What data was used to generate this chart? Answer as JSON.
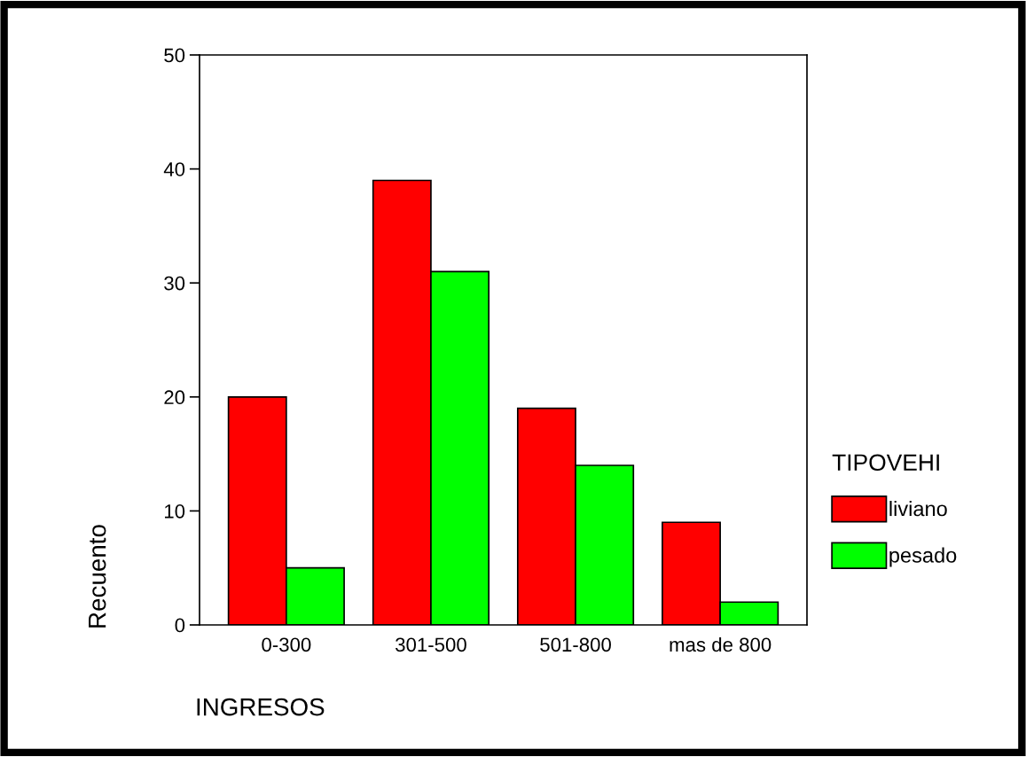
{
  "chart_data": {
    "type": "bar",
    "xlabel": "INGRESOS",
    "ylabel": "Recuento",
    "legend_title": "TIPOVEHI",
    "categories": [
      "0-300",
      "301-500",
      "501-800",
      "mas de 800"
    ],
    "series": [
      {
        "name": "liviano",
        "color": "#ff0000",
        "values": [
          20,
          39,
          19,
          9
        ]
      },
      {
        "name": "pesado",
        "color": "#00ff00",
        "values": [
          5,
          31,
          14,
          2
        ]
      }
    ],
    "ylim": [
      0,
      50
    ],
    "yticks": [
      0,
      10,
      20,
      30,
      40,
      50
    ],
    "grid": false,
    "legend": "right"
  }
}
